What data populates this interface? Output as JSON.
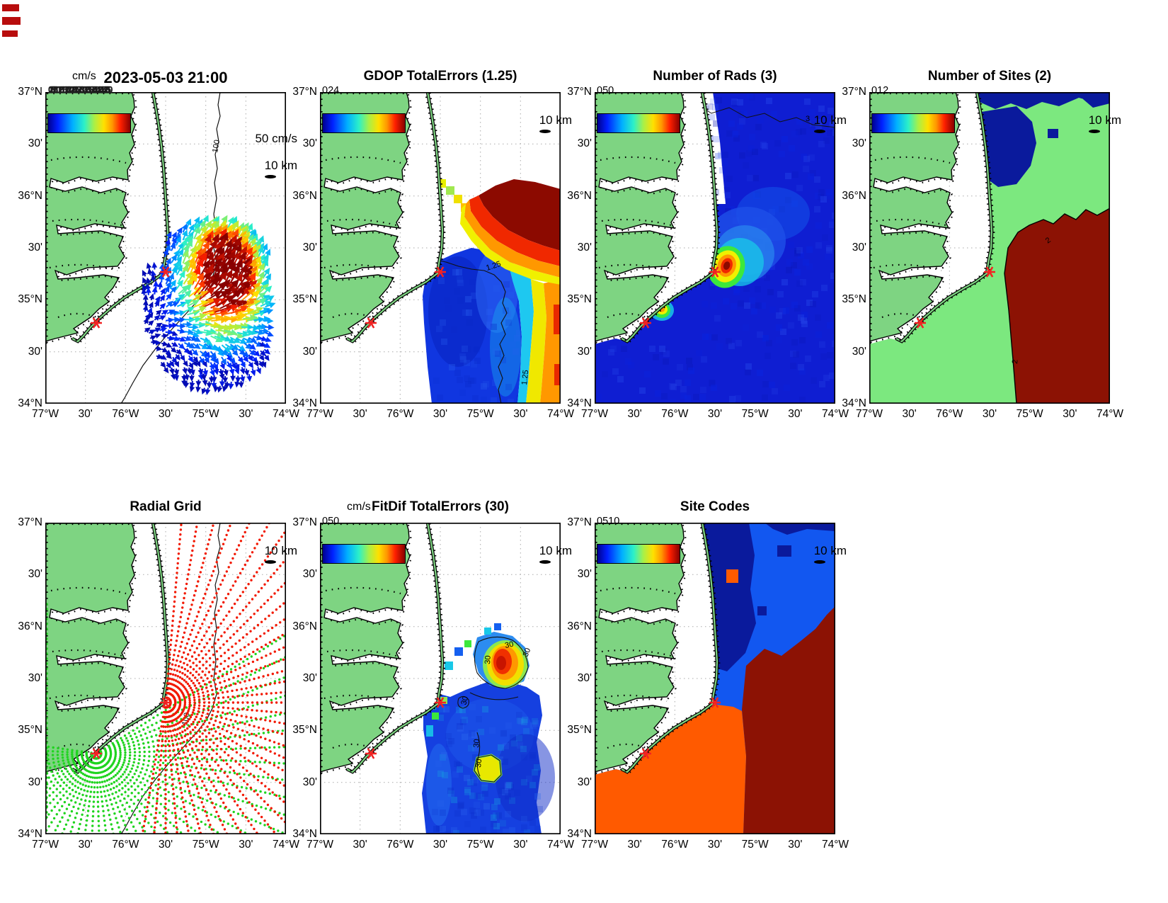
{
  "panels": {
    "currents": {
      "title": "2023-05-03 21:00",
      "colorbar_label": "cm/s",
      "colorbar_ticks_overlapping": "0 2.5 5 7.5 10 12.5 15 17.5 20 22.5 25 27.5 30 32.5 35 37.5 40 42.5 45 47.5 50",
      "vector_scale": "50 cm/s",
      "scale": "10 km",
      "depth_contour": "100"
    },
    "gdop": {
      "title": "GDOP TotalErrors (1.25)",
      "colorbar_ticks": [
        "0",
        "2",
        "4"
      ],
      "scale": "10 km",
      "contour": "1.25"
    },
    "rads": {
      "title": "Number of Rads (3)",
      "colorbar_ticks": [
        "0",
        "50"
      ],
      "scale": "10 km",
      "contour": "3"
    },
    "sites": {
      "title": "Number of Sites (2)",
      "colorbar_ticks": [
        "0",
        "1",
        "2"
      ],
      "scale": "10 km",
      "contour": "2"
    },
    "radial": {
      "title": "Radial Grid",
      "scale": "10 km",
      "depth_contour": "100"
    },
    "fitdif": {
      "title": "FitDif TotalErrors (30)",
      "colorbar_label": "cm/s",
      "colorbar_ticks": [
        "0",
        "50"
      ],
      "scale": "10 km",
      "contour": "30"
    },
    "sitecodes": {
      "title": "Site Codes",
      "colorbar_ticks": [
        "0",
        "5",
        "10"
      ],
      "scale": "10 km"
    }
  },
  "axes": {
    "x_ticks": [
      "77°W",
      "30'",
      "76°W",
      "30'",
      "75°W",
      "30'",
      "74°W"
    ],
    "y_ticks": [
      "37°N",
      "30'",
      "36°N",
      "30'",
      "35°N",
      "30'",
      "34°N"
    ]
  },
  "colors": {
    "land_green": "#7ed482",
    "ocean_one_site_green": "#7ce87f",
    "deep_blue": "#0f1ed2",
    "navy": "#0a1a9c",
    "royal_blue": "#1257f0",
    "dark_red": "#8c1204",
    "orange": "#ff5a00",
    "red_star": "#f22222",
    "radial_red_dots": "#f21800",
    "radial_green_dots": "#1fd41f"
  },
  "chart_data": [
    {
      "panel": "currents",
      "type": "scatter",
      "subtype": "vector_map",
      "title": "2023-05-03 21:00",
      "units": "cm/s",
      "colorbar_range": [
        0,
        50
      ],
      "reference_vector": "50 cm/s",
      "scale_bar": "10 km",
      "xlabel_ticks": [
        "77W",
        "76.5W",
        "76W",
        "75.5W",
        "75W",
        "74.5W",
        "74W"
      ],
      "ylabel_ticks": [
        "34N",
        "34.5N",
        "35N",
        "35.5N",
        "36N",
        "36.5N",
        "37N"
      ],
      "depth_contour_label": "100",
      "radar_sites_lonlat": [
        [
          -75.47,
          35.27
        ],
        [
          -76.37,
          34.76
        ]
      ],
      "description": "Surface current vectors east of Cape Hatteras; strongest dark-red ~50 cm/s flow toward NE (Gulf Stream core near 75.2W 35.2N); weaker blue/cyan <15 cm/s vectors near shore, rotating toward W/SW in the south"
    },
    {
      "panel": "gdop",
      "type": "heatmap",
      "title": "GDOP TotalErrors (1.25)",
      "colorbar_range": [
        0,
        4
      ],
      "contour_level": 1.25,
      "description": "GDOP error low (<1.25, blue) in lobe SE of Cape Hatteras; high (>3, dark red) band to the NE near 36N and along the eastern edge; 1.25 contour separates blue lobe from yellow/orange rim"
    },
    {
      "panel": "rads",
      "type": "heatmap",
      "title": "Number of Rads (3)",
      "colorbar_range": [
        0,
        50
      ],
      "contour_level": 3,
      "description": "Number of radial solutions: maximum ~45-50 (dark red core) just east of the Cape Hatteras site, secondary ~25 (yellow/orange) spot at the southern site, ~5-12 (blue) over the rest of the ocean; '3' contour near the northern boundary"
    },
    {
      "panel": "sites",
      "type": "heatmap",
      "title": "Number of Sites (2)",
      "colorbar_range": [
        0,
        2
      ],
      "contour_level": 2,
      "description": "Two-site overlap region (value 2, dark red) SE of Cape Hatteras outlined by black '2' contour; one site (green) elsewhere; zero-site (dark blue) patch north of Oregon Inlet and along the top edge"
    },
    {
      "panel": "radial",
      "type": "scatter",
      "title": "Radial Grid",
      "depth_contour_label": "100",
      "series": [
        {
          "name": "Cape Hatteras site radial grid",
          "marker_color": "red",
          "center_lonlat": [
            -75.47,
            35.27
          ]
        },
        {
          "name": "Southern site radial grid",
          "marker_color": "green",
          "center_lonlat": [
            -76.37,
            34.76
          ]
        }
      ],
      "description": "Polar measurement grids of range rings and bearing spokes fanning seaward from the two radar sites (red stars); red fan covers N-through-S bearings from Cape Hatteras, green fan covers W-through-NE bearings from the southern site"
    },
    {
      "panel": "fitdif",
      "type": "heatmap",
      "title": "FitDif TotalErrors (30)",
      "units": "cm/s",
      "colorbar_range": [
        0,
        50
      ],
      "contour_level": 30,
      "description": "Fit-difference error mostly 5-15 cm/s (blue); patch >30 (orange/red, black 30-contours) NE of Cape Hatteras near 75.1W 35.6N; small >30 yellow patch near 75.25W 34.7N"
    },
    {
      "panel": "sitecodes",
      "type": "heatmap",
      "title": "Site Codes",
      "colorbar_range": [
        0,
        10
      ],
      "description": "Site-combination code regions: dark navy column north of the Outer Banks, royal blue NE offshore region, large dark-red region SE offshore, orange nearshore/SW region with small orange outliers"
    }
  ]
}
